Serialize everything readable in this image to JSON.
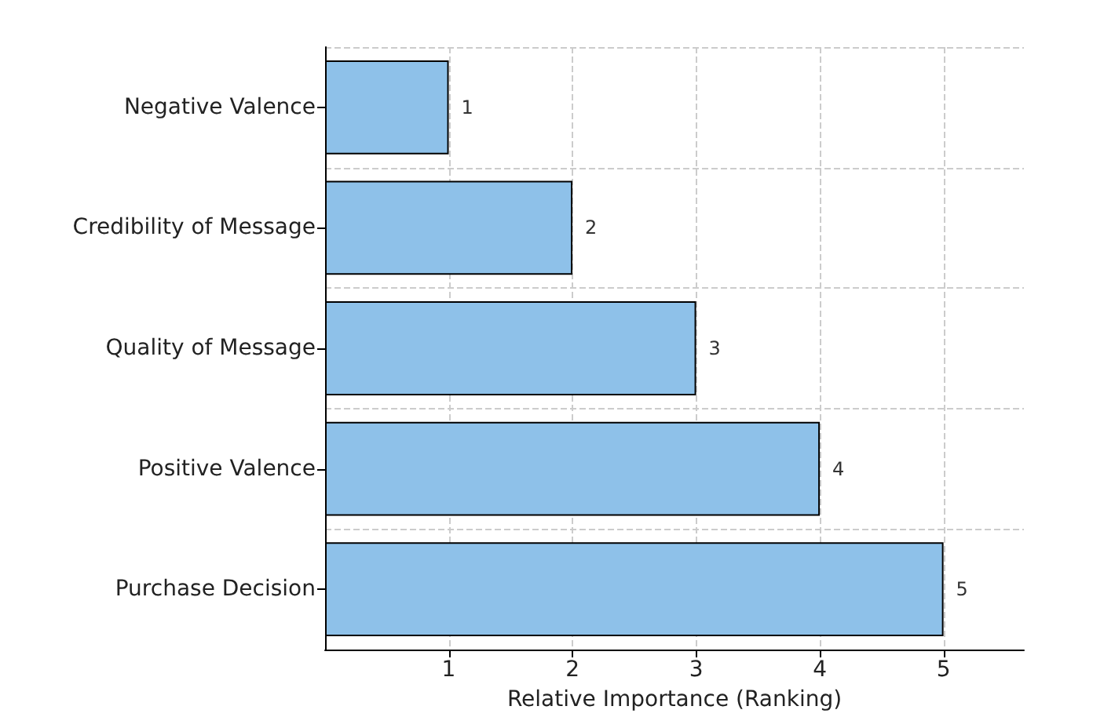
{
  "chart_data": {
    "type": "bar",
    "orientation": "horizontal",
    "xlabel": "Relative Importance (Ranking)",
    "categories": [
      "Negative Valence",
      "Credibility of Message",
      "Quality of Message",
      "Positive Valence",
      "Purchase Decision"
    ],
    "values": [
      1,
      2,
      3,
      4,
      5
    ],
    "color": "#8ec1e9",
    "xlim": [
      0,
      5.65
    ],
    "xticks": [
      1,
      2,
      3,
      4,
      5
    ],
    "grid": true,
    "data_labels": true
  }
}
